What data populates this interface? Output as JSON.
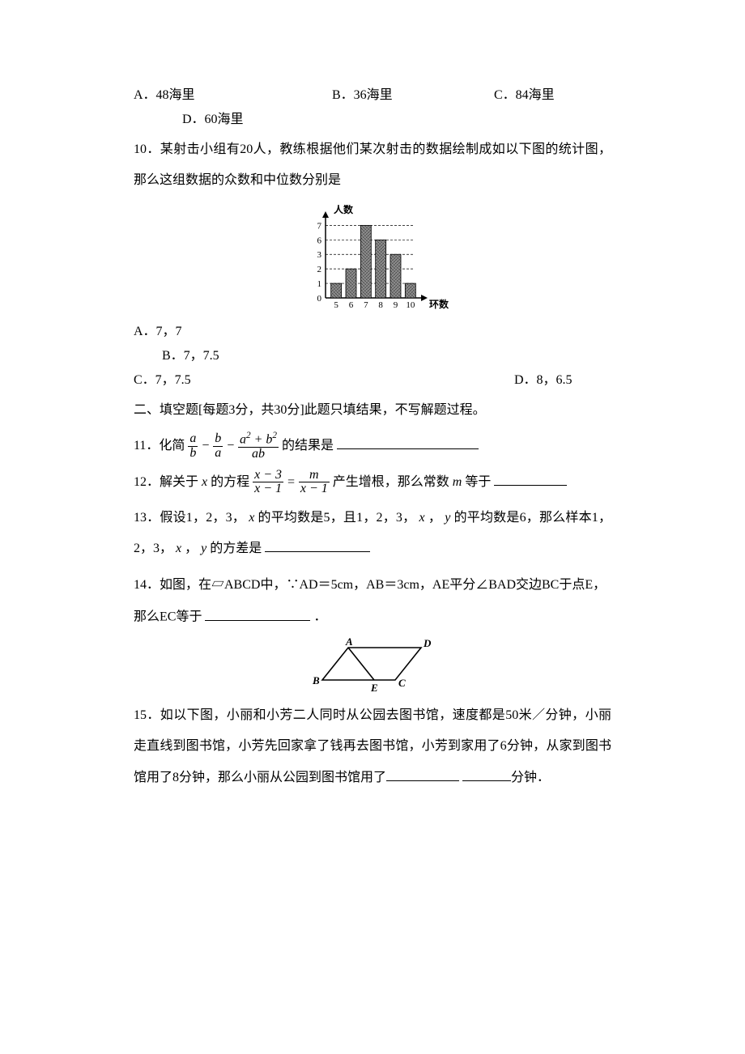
{
  "q9": {
    "A": "A．48海里",
    "B": "B．36海里",
    "C": "C．84海里",
    "D": "D．60海里"
  },
  "q10": {
    "stem": "10．某射击小组有20人，教练根据他们某次射击的数据绘制成如以下图的统计图，那么这组数据的众数和中位数分别是",
    "A": "A．7，7",
    "B": "B．7，7.5",
    "C": "C．7，7.5",
    "D": "D．8，6.5",
    "chart": {
      "type": "bar",
      "y_label": "人数",
      "x_label": "环数",
      "x_categories": [
        5,
        6,
        7,
        8,
        9,
        10
      ],
      "y_ticks": [
        0,
        1,
        2,
        3,
        6,
        7
      ],
      "values": [
        1,
        2,
        7,
        6,
        3,
        1
      ],
      "bar_fill": "#6d6d6d",
      "bar_pattern": "noise",
      "axis_color": "#000000",
      "grid_dash": "3,2",
      "background": "#ffffff",
      "font_size": 11
    }
  },
  "sec2": {
    "title": "二、填空题[每题3分，共30分]此题只填结果，不写解题过程。"
  },
  "q11": {
    "pre": "11．化简",
    "fr1_num": "a",
    "fr1_den": "b",
    "fr2_num": "b",
    "fr2_den": "a",
    "fr3_num_a": "a",
    "fr3_num_b": "b",
    "fr3_den": "ab",
    "mid": "的结果是"
  },
  "q12": {
    "pre": "12．解关于",
    "var1": "x",
    "mid1": "的方程",
    "frL_num_a": "x",
    "frL_num_b": "3",
    "frL_den_a": "x",
    "frL_den_b": "1",
    "frR_num": "m",
    "frR_den_a": "x",
    "frR_den_b": "1",
    "mid2": "产生增根，那么常数",
    "var2": "m",
    "mid3": "等于"
  },
  "q13": {
    "t1": "13．假设1，2，3，",
    "x": "x",
    "t2": "的平均数是5，且1，2，3，",
    "t3": "，",
    "y": "y",
    "t4": "的平均数是6，那么样本1，2，3，",
    "t5": "，",
    "t6": "的方差是"
  },
  "q14": {
    "t1": "14．如图，在▱ABCD中，∵AD＝5cm，AB＝3cm，AE平分∠BAD交边BC于点E，",
    "t2": " 那么EC等于",
    "dot": "．",
    "diagram": {
      "type": "parallelogram",
      "labels": [
        "A",
        "B",
        "C",
        "D",
        "E"
      ],
      "stroke": "#000000",
      "font_size": 13,
      "background": "#ffffff"
    }
  },
  "q15": {
    "t1": "15．如以下图，小丽和小芳二人同时从公园去图书馆，速度都是50米／分钟，小丽走直线到图书馆，小芳先回家拿了钱再去图书馆，小芳到家用了6分钟，从家到图书馆用了8分钟，那么小丽从公园到图书馆用了",
    "t2": "分钟．"
  }
}
